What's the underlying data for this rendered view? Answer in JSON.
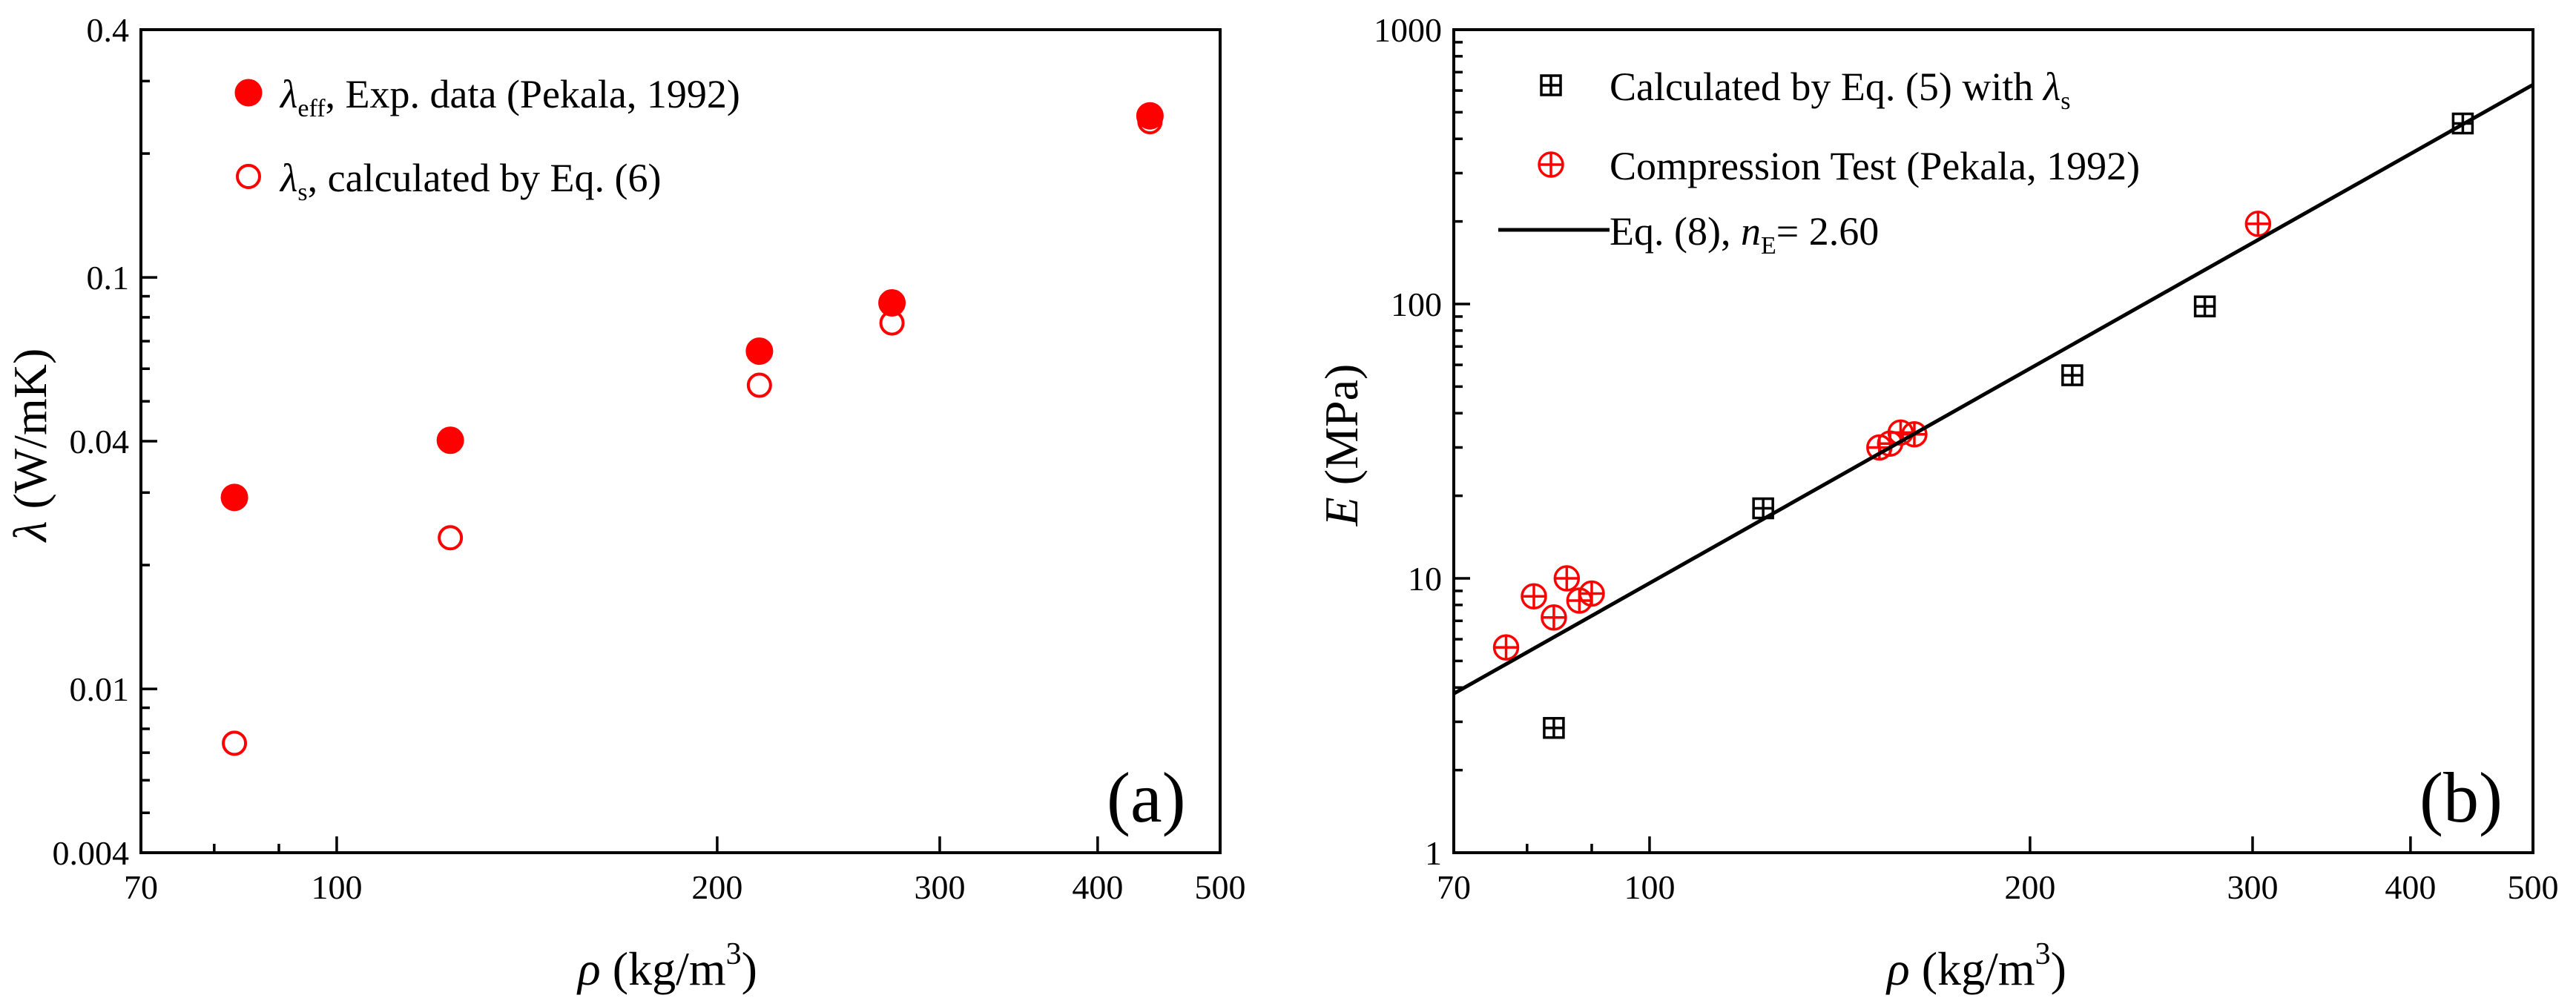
{
  "chart_data": [
    {
      "type": "scatter",
      "panel": "(a)",
      "xscale": "log",
      "yscale": "log",
      "xlim": [
        70,
        500
      ],
      "ylim": [
        0.004,
        0.4
      ],
      "xticks": [
        70,
        100,
        200,
        300,
        400,
        500
      ],
      "xtick_labels": [
        "70",
        "100",
        "200",
        "300",
        "400",
        "500"
      ],
      "yticks": [
        0.004,
        0.01,
        0.04,
        0.1,
        0.4
      ],
      "ytick_labels": [
        "0.004",
        "0.01",
        "0.04",
        "0.1",
        "0.4"
      ],
      "xlabel_symbol": "ρ",
      "xlabel_unit": " (kg/m",
      "xlabel_sup": "3",
      "xlabel_close": ")",
      "ylabel_symbol": "λ",
      "ylabel_unit": " (W/mK)",
      "series": [
        {
          "name": "λeff, Exp. data (Pekala, 1992)",
          "legend_symbol": "λ",
          "legend_sub": "eff",
          "legend_text": ", Exp. data (Pekala, 1992)",
          "marker": "filled-circle",
          "color": "#ff0000",
          "x": [
            83,
            123,
            216,
            275,
            440
          ],
          "y": [
            0.0292,
            0.0402,
            0.0662,
            0.0867,
            0.247
          ]
        },
        {
          "name": "λs, calculated by Eq. (6)",
          "legend_symbol": "λ",
          "legend_sub": "s",
          "legend_text": ", calculated by Eq. (6)",
          "marker": "open-circle",
          "color": "#ff0000",
          "x": [
            83,
            123,
            216,
            275,
            440
          ],
          "y": [
            0.00738,
            0.0233,
            0.0547,
            0.0775,
            0.239
          ]
        }
      ]
    },
    {
      "type": "scatter",
      "panel": "(b)",
      "xscale": "log",
      "yscale": "log",
      "xlim": [
        70,
        500
      ],
      "ylim": [
        1,
        1000
      ],
      "xticks": [
        70,
        100,
        200,
        300,
        400,
        500
      ],
      "xtick_labels": [
        "70",
        "100",
        "200",
        "300",
        "400",
        "500"
      ],
      "yticks": [
        1,
        10,
        100,
        1000
      ],
      "ytick_labels": [
        "1",
        "10",
        "100",
        "1000"
      ],
      "xlabel_symbol": "ρ",
      "xlabel_unit": " (kg/m",
      "xlabel_sup": "3",
      "xlabel_close": ")",
      "ylabel_symbol": "E",
      "ylabel_unit": " (MPa)",
      "series": [
        {
          "name": "Calculated by Eq. (5) with λs",
          "legend_text": "Calculated by Eq. (5) with ",
          "legend_symbol": "λ",
          "legend_sub": "s",
          "marker": "square-plus",
          "color": "#000000",
          "x": [
            84,
            123,
            216,
            275,
            440
          ],
          "y": [
            2.85,
            18,
            55,
            98,
            455
          ]
        },
        {
          "name": "Compression Test (Pekala, 1992)",
          "legend_text": "Compression Test (Pekala, 1992)",
          "marker": "circle-plus",
          "color": "#ff0000",
          "x": [
            77,
            81,
            84,
            86,
            88,
            90,
            152,
            155,
            158,
            162,
            303
          ],
          "y": [
            5.6,
            8.6,
            7.2,
            10.0,
            8.3,
            8.8,
            30,
            31,
            34,
            33.5,
            196
          ]
        },
        {
          "name": "Eq. (8), nE= 2.60",
          "legend_text": "Eq. (8), ",
          "legend_symbol": "n",
          "legend_sub": "E",
          "legend_tail": "= 2.60",
          "marker": "line",
          "color": "#000000",
          "x": [
            70,
            500
          ],
          "y": [
            3.8,
            630
          ]
        }
      ]
    }
  ]
}
